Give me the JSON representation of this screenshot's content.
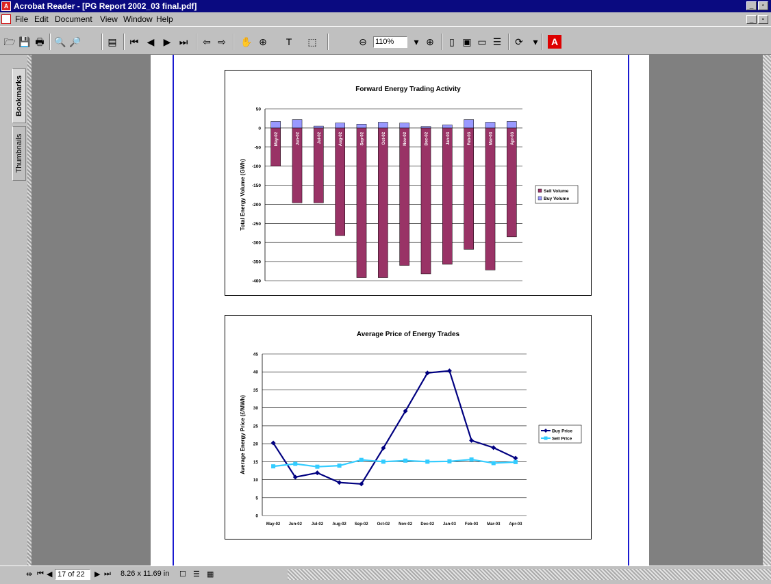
{
  "window": {
    "title": "Acrobat Reader - [PG Report 2002_03 final.pdf]"
  },
  "menu": [
    "File",
    "Edit",
    "Document",
    "View",
    "Window",
    "Help"
  ],
  "toolbar": {
    "zoom": "110%"
  },
  "side_tabs": {
    "bookmarks": "Bookmarks",
    "thumbnails": "Thumbnails"
  },
  "status": {
    "page": "17 of 22",
    "size": "8.26 x 11.69 in"
  },
  "colors": {
    "sell_bar": "#993366",
    "buy_bar": "#9999ff",
    "buy_line": "#000080",
    "sell_line": "#33ccff"
  },
  "chart_data": [
    {
      "type": "bar",
      "title": "Forward Energy Trading Activity",
      "ylabel": "Total Energy Volume (GWh)",
      "ylim": [
        -400,
        50
      ],
      "yticks": [
        50,
        0,
        -50,
        -100,
        -150,
        -200,
        -250,
        -300,
        -350,
        -400
      ],
      "categories": [
        "May-02",
        "Jun-02",
        "Jul-02",
        "Aug-02",
        "Sep-02",
        "Oct-02",
        "Nov-02",
        "Dec-02",
        "Jan-03",
        "Feb-03",
        "Mar-03",
        "Apr-03"
      ],
      "series": [
        {
          "name": "Sell Volume",
          "values": [
            -100,
            -196,
            -196,
            -282,
            -392,
            -392,
            -360,
            -382,
            -357,
            -318,
            -372,
            -285
          ]
        },
        {
          "name": "Buy Volume",
          "values": [
            17,
            22,
            5,
            13,
            10,
            15,
            13,
            4,
            8,
            22,
            15,
            17
          ]
        }
      ],
      "legend": "right"
    },
    {
      "type": "line",
      "title": "Average Price of Energy Trades",
      "ylabel": "Average Energy Price (£/MWh)",
      "ylim": [
        0,
        45
      ],
      "yticks": [
        0,
        5,
        10,
        15,
        20,
        25,
        30,
        35,
        40,
        45
      ],
      "categories": [
        "May-02",
        "Jun-02",
        "Jul-02",
        "Aug-02",
        "Sep-02",
        "Oct-02",
        "Nov-02",
        "Dec-02",
        "Jan-03",
        "Feb-03",
        "Mar-03",
        "Apr-03"
      ],
      "series": [
        {
          "name": "Buy Price",
          "values": [
            20.2,
            10.7,
            11.9,
            9.2,
            8.8,
            18.8,
            29.1,
            39.7,
            40.3,
            20.9,
            18.9,
            16.0
          ]
        },
        {
          "name": "Sell Price",
          "values": [
            13.7,
            14.4,
            13.6,
            13.9,
            15.5,
            15.0,
            15.3,
            15.0,
            15.1,
            15.6,
            14.6,
            14.9
          ]
        }
      ],
      "legend": "right"
    }
  ]
}
